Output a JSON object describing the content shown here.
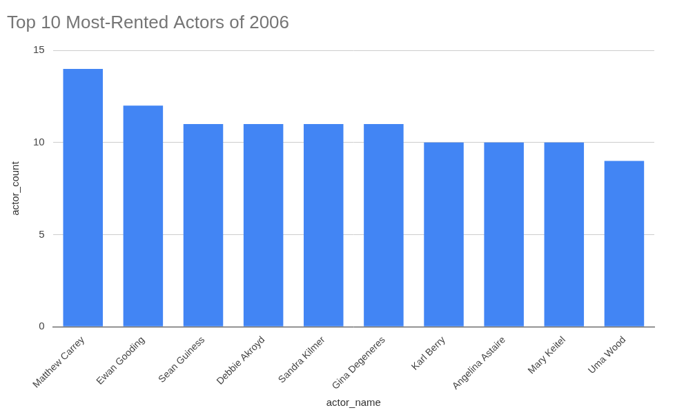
{
  "chart_data": {
    "type": "bar",
    "title": "Top 10 Most-Rented Actors of 2006",
    "x_label": "actor_name",
    "y_label": "actor_count",
    "categories": [
      "Matthew Carrey",
      "Ewan Gooding",
      "Sean Guiness",
      "Debbie Akroyd",
      "Sandra Kilmer",
      "Gina Degeneres",
      "Karl Berry",
      "Angelina Astaire",
      "Mary Keitel",
      "Uma Wood"
    ],
    "values": [
      14,
      12,
      11,
      11,
      11,
      11,
      10,
      10,
      10,
      9
    ],
    "color": "#4285f4",
    "ylim": [
      0,
      15
    ],
    "yticks": [
      0,
      5,
      10,
      15
    ],
    "grid": true
  }
}
